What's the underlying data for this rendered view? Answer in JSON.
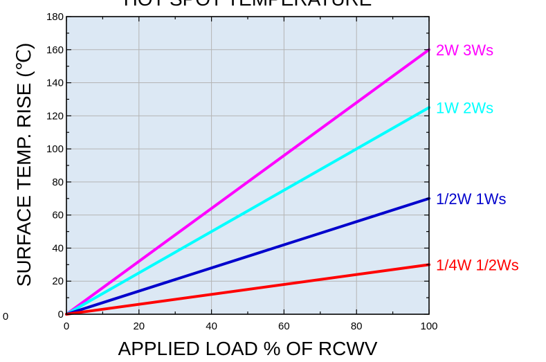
{
  "chart_data": {
    "type": "line",
    "title": "HOT SPOT TEMPERATURE",
    "xlabel": "APPLIED LOAD % OF RCWV",
    "ylabel": "SURFACE TEMP. RISE (℃)",
    "xlim": [
      0,
      100
    ],
    "ylim": [
      0,
      180
    ],
    "xticks": [
      0,
      20,
      40,
      60,
      80,
      100
    ],
    "yticks": [
      0,
      20,
      40,
      60,
      80,
      100,
      120,
      140,
      160,
      180
    ],
    "grid": true,
    "plot_background": "#dce8f4",
    "series": [
      {
        "name": "2W 3Ws",
        "color": "#ff00ff",
        "x": [
          0,
          100
        ],
        "y": [
          0,
          160
        ]
      },
      {
        "name": "1W 2Ws",
        "color": "#00ffff",
        "x": [
          0,
          100
        ],
        "y": [
          0,
          125
        ]
      },
      {
        "name": "1/2W 1Ws",
        "color": "#0000cc",
        "x": [
          0,
          100
        ],
        "y": [
          0,
          70
        ]
      },
      {
        "name": "1/4W 1/2Ws",
        "color": "#ff0000",
        "x": [
          0,
          100
        ],
        "y": [
          0,
          30
        ]
      }
    ],
    "stray_label": "0"
  }
}
